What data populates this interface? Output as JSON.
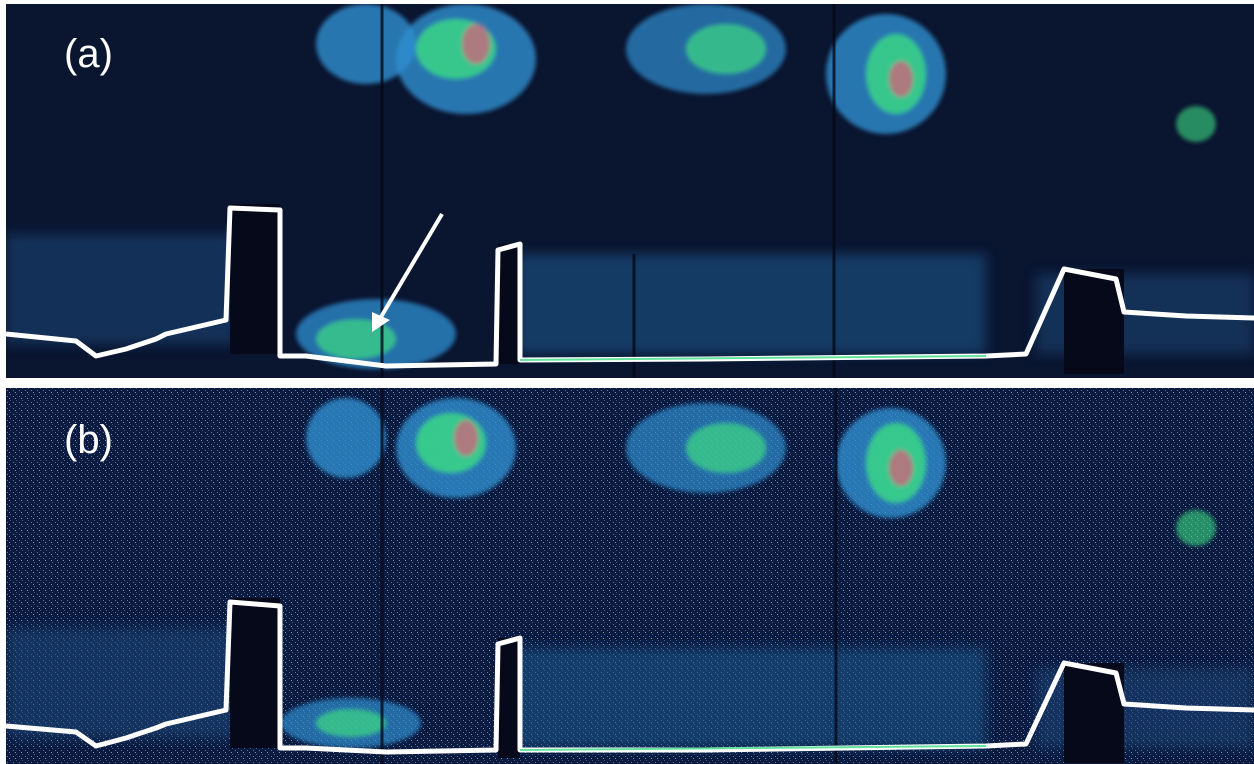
{
  "panels": [
    {
      "label": "(a)"
    },
    {
      "label": "(b)"
    }
  ],
  "colors": {
    "background_a": "#0a1530",
    "background_b": "#0c1a3e",
    "surface_line": "#ffffff",
    "signal_low": "#2f8fd0",
    "signal_mid": "#3ddc84",
    "signal_high": "#e05a7a",
    "divider": "#ffffff"
  },
  "annotations": {
    "arrow": "white-arrow"
  }
}
